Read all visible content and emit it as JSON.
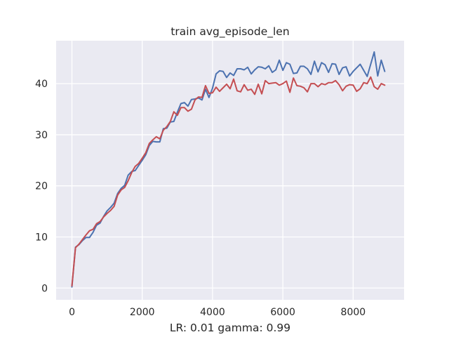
{
  "chart_data": {
    "type": "line",
    "title": "train avg_episode_len",
    "xlabel": "LR: 0.01 gamma: 0.99",
    "ylabel": "",
    "xlim": [
      -450,
      9450
    ],
    "ylim": [
      -2.3,
      48.4
    ],
    "xticks": [
      0,
      2000,
      4000,
      6000,
      8000
    ],
    "xtick_labels": [
      "0",
      "2000",
      "4000",
      "6000",
      "8000"
    ],
    "yticks": [
      0,
      10,
      20,
      30,
      40
    ],
    "ytick_labels": [
      "0",
      "10",
      "20",
      "30",
      "40"
    ],
    "grid": true,
    "legend": "none",
    "colors": {
      "background": "#eaeaf2",
      "grid": "#ffffff",
      "blue": "#4c72b0",
      "red": "#c44e52"
    },
    "series": [
      {
        "color": "#4c72b0",
        "points": [
          [
            0,
            0.2
          ],
          [
            100,
            8.0
          ],
          [
            200,
            8.5
          ],
          [
            300,
            9.3
          ],
          [
            400,
            9.9
          ],
          [
            500,
            9.9
          ],
          [
            600,
            10.9
          ],
          [
            700,
            12.3
          ],
          [
            800,
            12.7
          ],
          [
            900,
            14.0
          ],
          [
            1000,
            15.1
          ],
          [
            1100,
            15.8
          ],
          [
            1200,
            16.6
          ],
          [
            1300,
            18.5
          ],
          [
            1400,
            19.5
          ],
          [
            1500,
            20.1
          ],
          [
            1600,
            22.1
          ],
          [
            1700,
            22.8
          ],
          [
            1800,
            23.0
          ],
          [
            1900,
            24.0
          ],
          [
            2000,
            25.0
          ],
          [
            2100,
            26.1
          ],
          [
            2200,
            27.9
          ],
          [
            2300,
            28.7
          ],
          [
            2400,
            28.6
          ],
          [
            2500,
            28.6
          ],
          [
            2600,
            31.2
          ],
          [
            2700,
            31.3
          ],
          [
            2800,
            32.5
          ],
          [
            2900,
            32.6
          ],
          [
            3000,
            34.4
          ],
          [
            3100,
            36.1
          ],
          [
            3200,
            36.3
          ],
          [
            3300,
            35.6
          ],
          [
            3400,
            36.9
          ],
          [
            3500,
            37.0
          ],
          [
            3600,
            37.2
          ],
          [
            3700,
            36.8
          ],
          [
            3800,
            38.9
          ],
          [
            3900,
            37.3
          ],
          [
            4000,
            39.1
          ],
          [
            4100,
            41.9
          ],
          [
            4200,
            42.5
          ],
          [
            4300,
            42.4
          ],
          [
            4400,
            41.2
          ],
          [
            4500,
            42.1
          ],
          [
            4600,
            41.6
          ],
          [
            4700,
            42.9
          ],
          [
            4800,
            42.9
          ],
          [
            4900,
            42.7
          ],
          [
            5000,
            43.2
          ],
          [
            5100,
            41.9
          ],
          [
            5200,
            42.7
          ],
          [
            5300,
            43.3
          ],
          [
            5400,
            43.2
          ],
          [
            5500,
            42.9
          ],
          [
            5600,
            43.5
          ],
          [
            5700,
            42.2
          ],
          [
            5800,
            42.7
          ],
          [
            5900,
            44.6
          ],
          [
            6000,
            42.6
          ],
          [
            6100,
            44.1
          ],
          [
            6200,
            43.8
          ],
          [
            6300,
            42.0
          ],
          [
            6400,
            42.1
          ],
          [
            6500,
            43.4
          ],
          [
            6600,
            43.4
          ],
          [
            6700,
            42.9
          ],
          [
            6800,
            41.8
          ],
          [
            6900,
            44.4
          ],
          [
            7000,
            42.3
          ],
          [
            7100,
            44.1
          ],
          [
            7200,
            43.7
          ],
          [
            7300,
            42.2
          ],
          [
            7400,
            43.9
          ],
          [
            7500,
            43.8
          ],
          [
            7600,
            41.8
          ],
          [
            7700,
            43.1
          ],
          [
            7800,
            43.3
          ],
          [
            7900,
            41.5
          ],
          [
            8000,
            42.4
          ],
          [
            8200,
            43.8
          ],
          [
            8400,
            41.4
          ],
          [
            8600,
            46.2
          ],
          [
            8700,
            41.5
          ],
          [
            8800,
            44.6
          ],
          [
            8900,
            42.4
          ]
        ]
      },
      {
        "color": "#c44e52",
        "points": [
          [
            0,
            0.4
          ],
          [
            100,
            7.9
          ],
          [
            200,
            8.6
          ],
          [
            300,
            9.5
          ],
          [
            400,
            10.4
          ],
          [
            500,
            11.2
          ],
          [
            600,
            11.5
          ],
          [
            700,
            12.6
          ],
          [
            800,
            13.0
          ],
          [
            900,
            13.9
          ],
          [
            1000,
            14.6
          ],
          [
            1100,
            15.2
          ],
          [
            1200,
            16.0
          ],
          [
            1300,
            18.2
          ],
          [
            1400,
            19.2
          ],
          [
            1500,
            19.7
          ],
          [
            1600,
            21.0
          ],
          [
            1700,
            22.6
          ],
          [
            1800,
            23.8
          ],
          [
            1900,
            24.4
          ],
          [
            2000,
            25.4
          ],
          [
            2100,
            26.5
          ],
          [
            2200,
            28.3
          ],
          [
            2300,
            29.0
          ],
          [
            2400,
            29.6
          ],
          [
            2500,
            29.2
          ],
          [
            2600,
            30.9
          ],
          [
            2700,
            31.6
          ],
          [
            2800,
            32.6
          ],
          [
            2900,
            34.5
          ],
          [
            3000,
            33.8
          ],
          [
            3100,
            35.3
          ],
          [
            3200,
            35.3
          ],
          [
            3300,
            34.6
          ],
          [
            3400,
            35.0
          ],
          [
            3500,
            36.8
          ],
          [
            3600,
            37.4
          ],
          [
            3700,
            37.3
          ],
          [
            3800,
            39.6
          ],
          [
            3900,
            38.1
          ],
          [
            4000,
            38.2
          ],
          [
            4100,
            39.3
          ],
          [
            4200,
            38.5
          ],
          [
            4300,
            39.2
          ],
          [
            4400,
            39.9
          ],
          [
            4500,
            39.0
          ],
          [
            4600,
            40.9
          ],
          [
            4700,
            38.6
          ],
          [
            4800,
            38.4
          ],
          [
            4900,
            39.8
          ],
          [
            5000,
            38.7
          ],
          [
            5100,
            38.9
          ],
          [
            5200,
            37.9
          ],
          [
            5300,
            39.9
          ],
          [
            5400,
            38.0
          ],
          [
            5500,
            40.6
          ],
          [
            5600,
            40.0
          ],
          [
            5700,
            40.1
          ],
          [
            5800,
            40.2
          ],
          [
            5900,
            39.7
          ],
          [
            6000,
            40.0
          ],
          [
            6100,
            40.5
          ],
          [
            6200,
            38.3
          ],
          [
            6300,
            41.1
          ],
          [
            6400,
            39.6
          ],
          [
            6500,
            39.5
          ],
          [
            6600,
            39.2
          ],
          [
            6700,
            38.4
          ],
          [
            6800,
            40.0
          ],
          [
            6900,
            40.0
          ],
          [
            7000,
            39.4
          ],
          [
            7100,
            40.0
          ],
          [
            7200,
            39.8
          ],
          [
            7300,
            40.2
          ],
          [
            7400,
            40.2
          ],
          [
            7500,
            40.6
          ],
          [
            7600,
            39.8
          ],
          [
            7700,
            38.6
          ],
          [
            7800,
            39.5
          ],
          [
            7900,
            39.8
          ],
          [
            8000,
            39.7
          ],
          [
            8100,
            38.5
          ],
          [
            8200,
            39.0
          ],
          [
            8300,
            40.2
          ],
          [
            8400,
            40.0
          ],
          [
            8500,
            41.3
          ],
          [
            8600,
            39.4
          ],
          [
            8700,
            38.9
          ],
          [
            8800,
            40.0
          ],
          [
            8900,
            39.7
          ]
        ]
      }
    ]
  }
}
